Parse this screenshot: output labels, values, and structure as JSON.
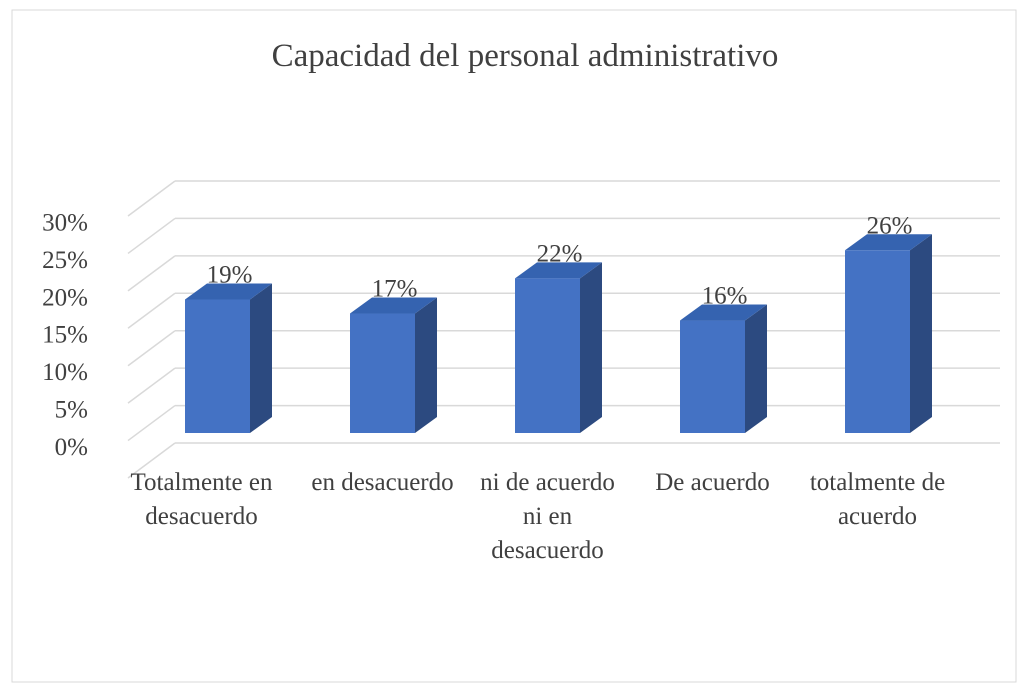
{
  "chart_data": {
    "type": "bar3d",
    "title": "Capacidad del personal administrativo",
    "categories": [
      "Totalmente en desacuerdo",
      "en desacuerdo",
      "ni de acuerdo ni en desacuerdo",
      "De acuerdo",
      "totalmente de acuerdo"
    ],
    "values": [
      19,
      17,
      22,
      16,
      26
    ],
    "value_labels": [
      "19%",
      "17%",
      "22%",
      "16%",
      "26%"
    ],
    "color": "#4472c4",
    "ylim": [
      0,
      35
    ],
    "yticks": [
      {
        "value": 0,
        "label": "0%"
      },
      {
        "value": 5,
        "label": "5%"
      },
      {
        "value": 10,
        "label": "10%"
      },
      {
        "value": 15,
        "label": "15%"
      },
      {
        "value": 20,
        "label": "20%"
      },
      {
        "value": 25,
        "label": "25%"
      },
      {
        "value": 30,
        "label": "30%"
      }
    ],
    "grid": true
  }
}
